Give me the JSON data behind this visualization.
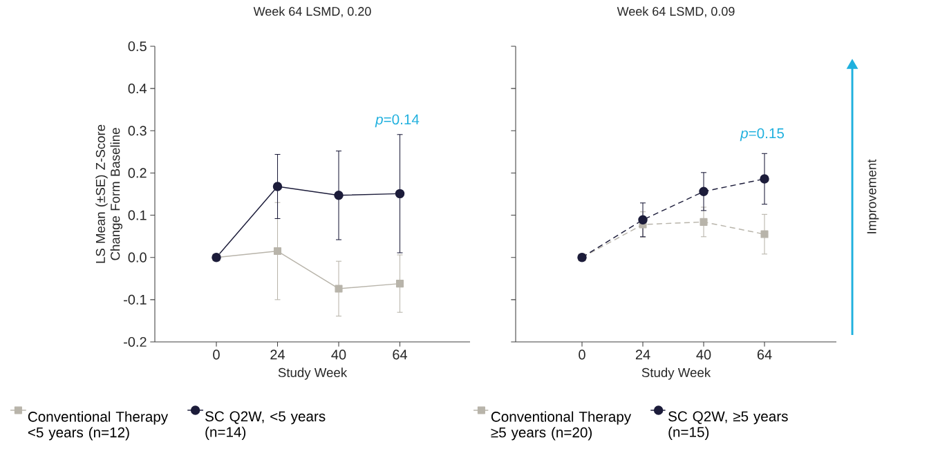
{
  "chart_data": [
    {
      "type": "line",
      "title": "Week 64 LSMD, 0.20",
      "xlabel": "Study Week",
      "ylabel": "LS Mean (±SE) Z-Score Change Form Baseline",
      "categories": [
        "0",
        "24",
        "40",
        "64"
      ],
      "ylim": [
        -0.2,
        0.5
      ],
      "yticks": [
        -0.2,
        -0.1,
        {
          "value": 0,
          "label": "0.0"
        },
        0.1,
        0.2,
        0.3,
        0.4,
        0.5
      ],
      "grid": false,
      "legend": "bottom",
      "series": [
        {
          "name": "Conventional Therapy <5 years (n=12)",
          "color": "#b8b4aa",
          "marker": "square",
          "line_style": "solid",
          "values": [
            0,
            0.015,
            -0.074,
            -0.062
          ],
          "errors": [
            null,
            0.115,
            0.065,
            0.068
          ]
        },
        {
          "name": "SC Q2W, <5 years (n=14)",
          "color": "#1c1c3a",
          "marker": "circle",
          "line_style": "solid",
          "values": [
            0,
            0.168,
            0.147,
            0.151
          ],
          "errors": [
            null,
            0.076,
            0.105,
            0.14
          ]
        }
      ],
      "annotations": [
        "*p*=0.14"
      ]
    },
    {
      "type": "line",
      "title": "Week 64 LSMD, 0.09",
      "xlabel": "Study Week",
      "categories": [
        "0",
        "24",
        "40",
        "64"
      ],
      "ylim": [
        -0.2,
        0.5
      ],
      "yticks": [
        -0.2,
        -0.1,
        0,
        0.1,
        0.2,
        0.3,
        0.4,
        0.5
      ],
      "tick_labels": "x",
      "grid": false,
      "legend": "bottom",
      "series": [
        {
          "name": "Conventional Therapy ≥5 years (n=20)",
          "color": "#b8b4aa",
          "marker": "square",
          "line_style": "dashed",
          "values": [
            0,
            0.078,
            0.084,
            0.055
          ],
          "errors": [
            null,
            0.03,
            0.035,
            0.047
          ]
        },
        {
          "name": "SC Q2W, ≥5 years (n=15)",
          "color": "#1c1c3a",
          "marker": "circle",
          "line_style": "dashed",
          "values": [
            0,
            0.089,
            0.156,
            0.186
          ],
          "errors": [
            null,
            0.04,
            0.045,
            0.06
          ]
        }
      ],
      "annotations": [
        "*p*=0.15",
        "Improvement"
      ]
    }
  ]
}
